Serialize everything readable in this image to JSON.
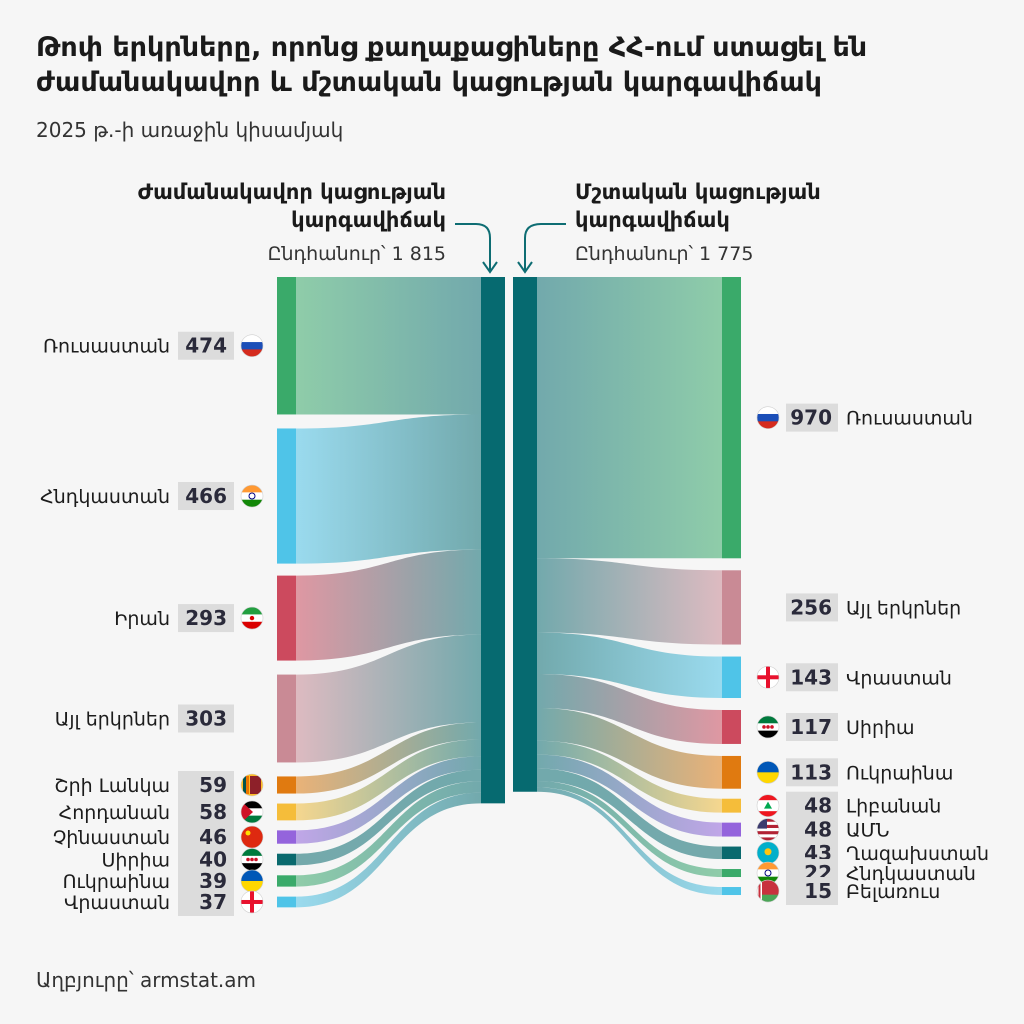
{
  "title": "Թոփ երկրները, որոնց քաղաքացիները ՀՀ-ում ստացել են ժամանակավոր և մշտական կացության կարգավիճակ",
  "subtitle": "2025 թ.-ի առաջին կիսամյակ",
  "source": "Աղբյուրը՝ armstat.am",
  "colors": {
    "background": "#f6f6f6",
    "center_bar": "#066a70",
    "value_box": "#dcdcdc",
    "arrow": "#0e6d73"
  },
  "chart_data": {
    "type": "sankey",
    "left": {
      "title_line1": "Ժամանակավոր կացության",
      "title_line2": "կարգավիճակ",
      "total_label": "Ընդհանուր՝ 1 815",
      "total": 1815,
      "nodes": [
        {
          "label": "Ռուսաստան",
          "value": 474,
          "color": "#3aaa6a",
          "flag": "russia"
        },
        {
          "label": "Հնդկաստան",
          "value": 466,
          "color": "#4fc4e8",
          "flag": "india"
        },
        {
          "label": "Իրան",
          "value": 293,
          "color": "#cc4a5e",
          "flag": "iran"
        },
        {
          "label": "Այլ երկրներ",
          "value": 303,
          "color": "#c98a95",
          "flag": ""
        },
        {
          "label": "Շրի Լանկա",
          "value": 59,
          "color": "#e07a10",
          "flag": "srilanka"
        },
        {
          "label": "Հորդանան",
          "value": 58,
          "color": "#f5bd3a",
          "flag": "jordan"
        },
        {
          "label": "Չինաստան",
          "value": 46,
          "color": "#9464dc",
          "flag": "china"
        },
        {
          "label": "Սիրիա",
          "value": 40,
          "color": "#0a6a6e",
          "flag": "syria"
        },
        {
          "label": "Ուկրաինա",
          "value": 39,
          "color": "#3aaa6a",
          "flag": "ukraine"
        },
        {
          "label": "Վրաստան",
          "value": 37,
          "color": "#4fc4e8",
          "flag": "georgia"
        }
      ]
    },
    "right": {
      "title_line1": "Մշտական կացության",
      "title_line2": "կարգավիճակ",
      "total_label": "Ընդհանուր՝ 1 775",
      "total": 1775,
      "nodes": [
        {
          "label": "Ռուսաստան",
          "value": 970,
          "color": "#3aaa6a",
          "flag": "russia"
        },
        {
          "label": "Այլ երկրներ",
          "value": 256,
          "color": "#c98a95",
          "flag": ""
        },
        {
          "label": "Վրաստան",
          "value": 143,
          "color": "#4fc4e8",
          "flag": "georgia"
        },
        {
          "label": "Սիրիա",
          "value": 117,
          "color": "#cc4a5e",
          "flag": "syria"
        },
        {
          "label": "Ուկրաինա",
          "value": 113,
          "color": "#e07a10",
          "flag": "ukraine"
        },
        {
          "label": "Լիբանան",
          "value": 48,
          "color": "#f5bd3a",
          "flag": "lebanon"
        },
        {
          "label": "ԱՄՆ",
          "value": 48,
          "color": "#9464dc",
          "flag": "usa"
        },
        {
          "label": "Ղազախստան",
          "value": 43,
          "color": "#0a6a6e",
          "flag": "kazakhstan"
        },
        {
          "label": "Հնդկաստան",
          "value": 22,
          "color": "#3aaa6a",
          "flag": "india"
        },
        {
          "label": "Բելառուս",
          "value": 15,
          "color": "#4fc4e8",
          "flag": "belarus"
        }
      ]
    }
  }
}
